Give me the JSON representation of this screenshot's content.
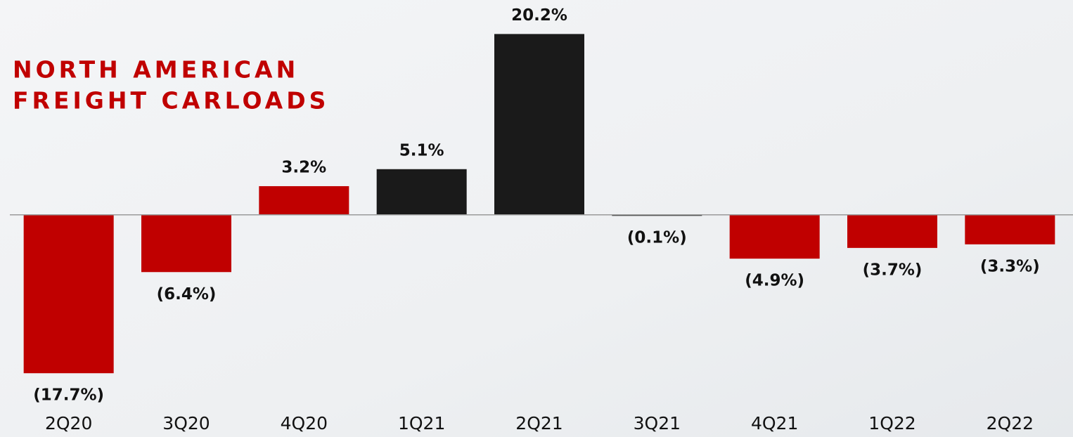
{
  "chart_data": {
    "type": "bar",
    "title": [
      "NORTH AMERICAN",
      "FREIGHT CARLOADS"
    ],
    "categories": [
      "2Q20",
      "3Q20",
      "4Q20",
      "1Q21",
      "2Q21",
      "3Q21",
      "4Q21",
      "1Q22",
      "2Q22"
    ],
    "values": [
      -17.7,
      -6.4,
      3.2,
      5.1,
      20.2,
      -0.1,
      -4.9,
      -3.7,
      -3.3
    ],
    "value_labels": [
      "(17.7%)",
      "(6.4%)",
      "3.2%",
      "5.1%",
      "20.2%",
      "(0.1%)",
      "(4.9%)",
      "(3.7%)",
      "(3.3%)"
    ],
    "colors": [
      "#c00000",
      "#c00000",
      "#c00000",
      "#1a1a1a",
      "#1a1a1a",
      "#1a1a1a",
      "#c00000",
      "#c00000",
      "#c00000"
    ],
    "ylim": [
      -22,
      24
    ]
  }
}
